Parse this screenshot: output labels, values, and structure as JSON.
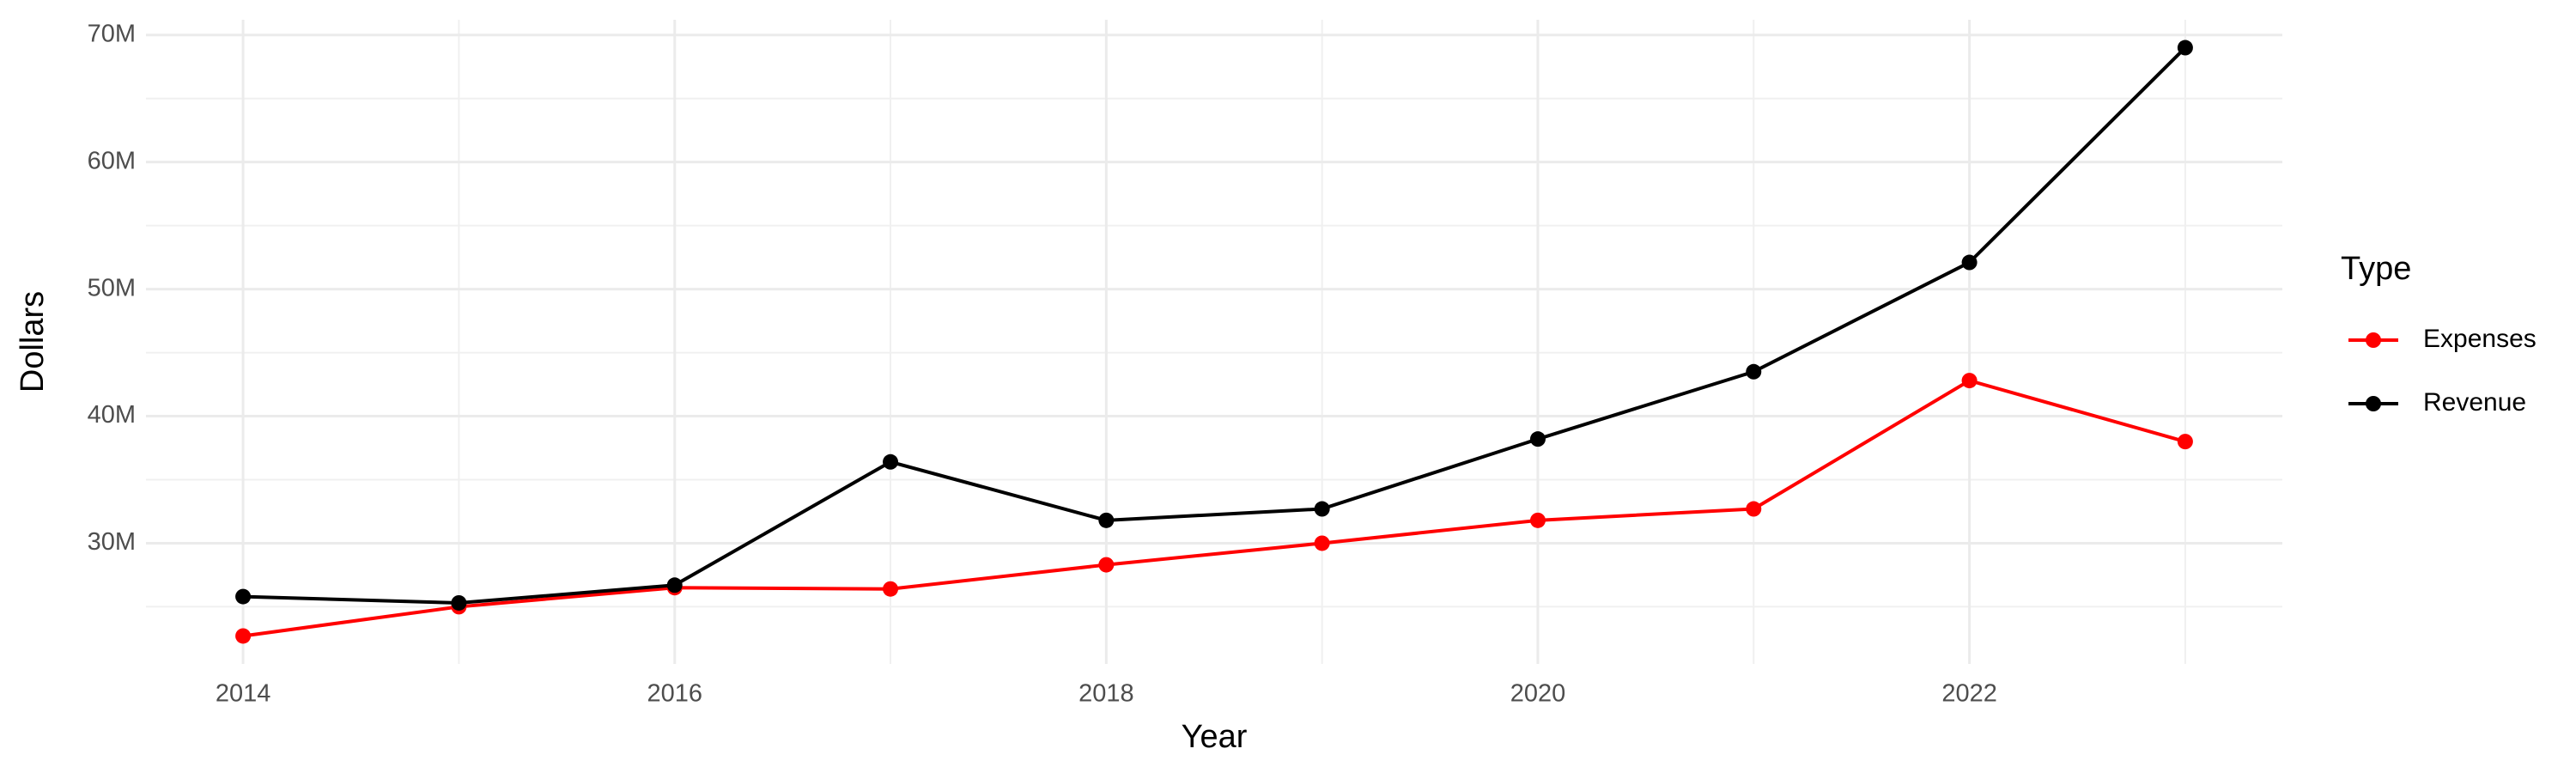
{
  "chart_data": {
    "type": "line",
    "x_label": "Year",
    "y_label": "Dollars",
    "legend_title": "Type",
    "x": [
      2014,
      2015,
      2016,
      2017,
      2018,
      2019,
      2020,
      2021,
      2022,
      2023
    ],
    "series": [
      {
        "name": "Expenses",
        "color": "#ff0000",
        "values": [
          22700000,
          25000000,
          26500000,
          26400000,
          28300000,
          30000000,
          31800000,
          32700000,
          42800000,
          38000000
        ]
      },
      {
        "name": "Revenue",
        "color": "#000000",
        "values": [
          25800000,
          25300000,
          26700000,
          36400000,
          31800000,
          32700000,
          38200000,
          43500000,
          52100000,
          69000000
        ]
      }
    ],
    "xlim": [
      2013.55,
      2023.45
    ],
    "xticks": [
      2014,
      2016,
      2018,
      2020,
      2022
    ],
    "ylim": [
      20500000,
      71200000
    ],
    "yticks": [
      {
        "value": 30000000,
        "label": "30M"
      },
      {
        "value": 40000000,
        "label": "40M"
      },
      {
        "value": 50000000,
        "label": "50M"
      },
      {
        "value": 60000000,
        "label": "60M"
      },
      {
        "value": 70000000,
        "label": "70M"
      }
    ],
    "grid": true,
    "legend": "right"
  }
}
